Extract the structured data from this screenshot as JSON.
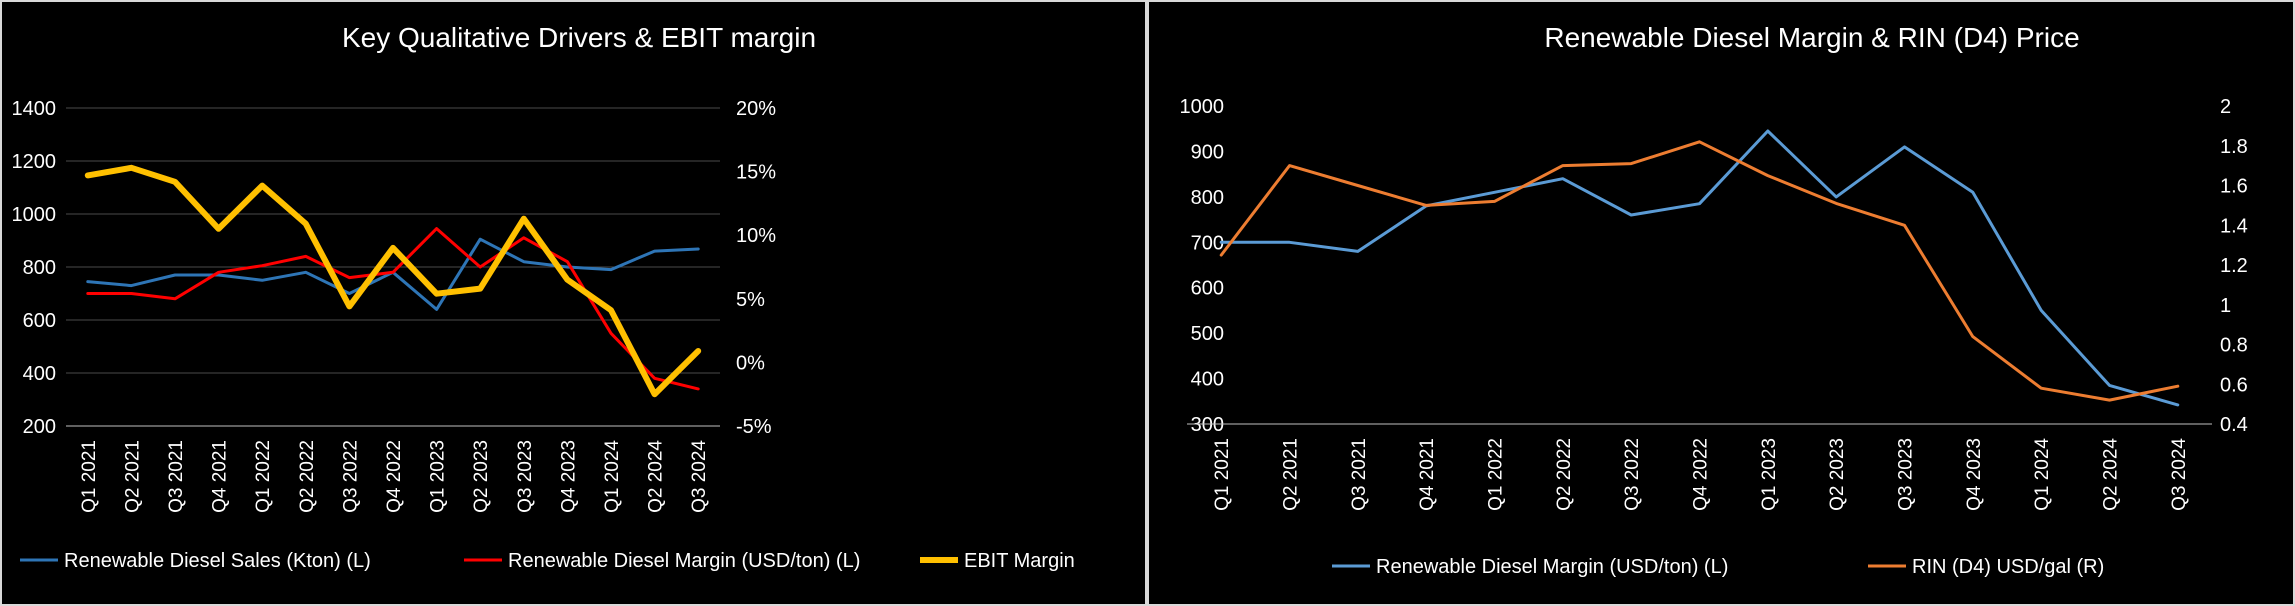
{
  "chart_data": [
    {
      "type": "line",
      "title": "Key Qualitative Drivers & EBIT margin",
      "categories": [
        "Q1 2021",
        "Q2 2021",
        "Q3 2021",
        "Q4 2021",
        "Q1 2022",
        "Q2 2022",
        "Q3 2022",
        "Q4 2022",
        "Q1 2023",
        "Q2 2023",
        "Q3 2023",
        "Q4 2023",
        "Q1 2024",
        "Q2 2024",
        "Q3 2024"
      ],
      "y_left": {
        "min": 200,
        "max": 1400,
        "step": 200,
        "tick_labels": [
          "200",
          "400",
          "600",
          "800",
          "1000",
          "1200",
          "1400"
        ]
      },
      "y_right": {
        "min": -5,
        "max": 20,
        "step": 5,
        "tick_labels": [
          "-5%",
          "0%",
          "5%",
          "10%",
          "15%",
          "20%"
        ]
      },
      "grid": true,
      "legend_position": "bottom",
      "series": [
        {
          "name": "Renewable Diesel Sales (Kton) (L)",
          "axis": "left",
          "color": "#2e75b6",
          "values": [
            745,
            730,
            770,
            770,
            750,
            780,
            700,
            780,
            640,
            905,
            820,
            800,
            790,
            860,
            868
          ]
        },
        {
          "name": "Renewable Diesel Margin (USD/ton) (L)",
          "axis": "left",
          "color": "#ff0000",
          "values": [
            700,
            700,
            680,
            780,
            805,
            840,
            760,
            780,
            945,
            800,
            910,
            820,
            550,
            380,
            340
          ]
        },
        {
          "name": "EBIT Margin",
          "axis": "right",
          "color": "#ffc000",
          "values": [
            14.7,
            15.3,
            14.2,
            10.5,
            13.9,
            10.9,
            4.4,
            9.0,
            5.4,
            5.8,
            11.3,
            6.5,
            4.1,
            -2.5,
            0.9
          ]
        }
      ]
    },
    {
      "type": "line",
      "title": "Renewable Diesel Margin & RIN (D4) Price",
      "categories": [
        "Q1 2021",
        "Q2 2021",
        "Q3 2021",
        "Q4 2021",
        "Q1 2022",
        "Q2 2022",
        "Q3 2022",
        "Q4 2022",
        "Q1 2023",
        "Q2 2023",
        "Q3 2023",
        "Q4 2023",
        "Q1 2024",
        "Q2 2024",
        "Q3 2024"
      ],
      "y_left": {
        "min": 300,
        "max": 1000,
        "step": 100,
        "tick_labels": [
          "300",
          "400",
          "500",
          "600",
          "700",
          "800",
          "900",
          "1000"
        ]
      },
      "y_right": {
        "min": 0.4,
        "max": 2.0,
        "step": 0.2,
        "tick_labels": [
          "0.4",
          "0.6",
          "0.8",
          "1",
          "1.2",
          "1.4",
          "1.6",
          "1.8",
          "2"
        ]
      },
      "grid": false,
      "legend_position": "bottom",
      "series": [
        {
          "name": "Renewable Diesel Margin (USD/ton) (L)",
          "axis": "left",
          "color": "#5b9bd5",
          "values": [
            700,
            700,
            680,
            780,
            810,
            840,
            760,
            785,
            945,
            800,
            910,
            810,
            550,
            385,
            342
          ]
        },
        {
          "name": "RIN (D4) USD/gal (R)",
          "axis": "right",
          "color": "#ed7d31",
          "values": [
            1.25,
            1.7,
            1.6,
            1.5,
            1.52,
            1.7,
            1.71,
            1.82,
            1.65,
            1.51,
            1.4,
            0.84,
            0.58,
            0.52,
            0.59
          ]
        }
      ]
    }
  ]
}
